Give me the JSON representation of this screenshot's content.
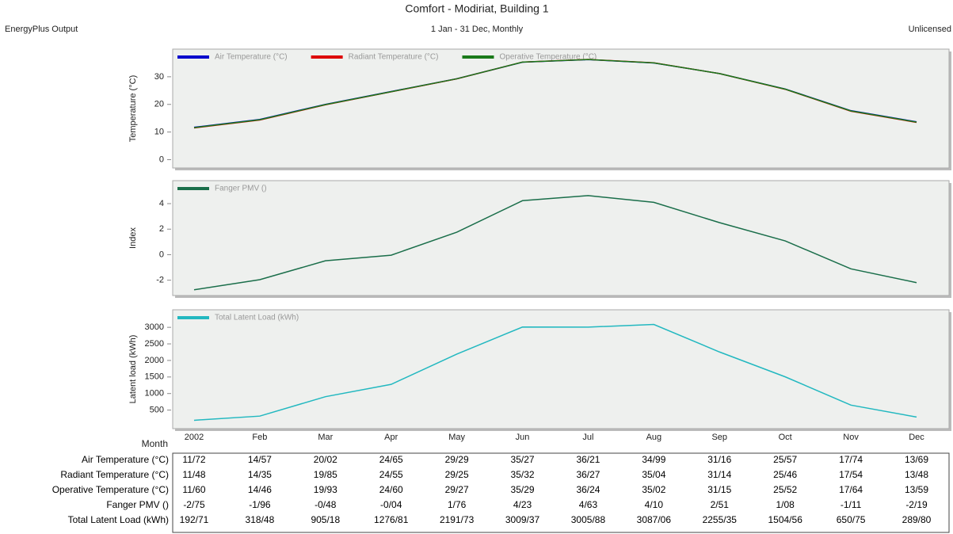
{
  "header": {
    "title": "Comfort - Modiriat, Building 1",
    "subtitle": "1 Jan - 31 Dec, Monthly",
    "left": "EnergyPlus Output",
    "right": "Unlicensed"
  },
  "chart_data": [
    {
      "type": "line",
      "y_label": "Temperature (°C)",
      "ylim": [
        -3,
        40
      ],
      "yticks": [
        0,
        10,
        20,
        30
      ],
      "series": [
        {
          "name": "Air Temperature (°C)",
          "color": "#0000cc",
          "values": [
            11.72,
            14.57,
            20.02,
            24.65,
            29.29,
            35.27,
            36.21,
            34.99,
            31.16,
            25.57,
            17.74,
            13.69
          ]
        },
        {
          "name": "Radiant Temperature (°C)",
          "color": "#dd0000",
          "values": [
            11.48,
            14.35,
            19.85,
            24.55,
            29.25,
            35.32,
            36.27,
            35.04,
            31.14,
            25.46,
            17.54,
            13.48
          ]
        },
        {
          "name": "Operative Temperature (°C)",
          "color": "#1a7a1a",
          "values": [
            11.6,
            14.46,
            19.93,
            24.6,
            29.27,
            35.29,
            36.24,
            35.02,
            31.15,
            25.52,
            17.64,
            13.59
          ]
        }
      ]
    },
    {
      "type": "line",
      "y_label": "Index",
      "ylim": [
        -3.2,
        5.8
      ],
      "yticks": [
        -2,
        0,
        2,
        4
      ],
      "series": [
        {
          "name": "Fanger PMV ()",
          "color": "#1a6e4a",
          "values": [
            -2.75,
            -1.96,
            -0.48,
            -0.04,
            1.76,
            4.23,
            4.63,
            4.1,
            2.51,
            1.08,
            -1.11,
            -2.19
          ]
        }
      ]
    },
    {
      "type": "line",
      "y_label": "Latent load (kWh)",
      "x_label": "Month",
      "ylim": [
        -60,
        3530
      ],
      "yticks": [
        500,
        1000,
        1500,
        2000,
        2500,
        3000
      ],
      "categories": [
        "2002",
        "Feb",
        "Mar",
        "Apr",
        "May",
        "Jun",
        "Jul",
        "Aug",
        "Sep",
        "Oct",
        "Nov",
        "Dec"
      ],
      "series": [
        {
          "name": "Total Latent Load (kWh)",
          "color": "#22b8c0",
          "values": [
            192.71,
            318.48,
            905.18,
            1276.81,
            2191.73,
            3009.37,
            3005.88,
            3087.06,
            2255.35,
            1504.56,
            650.75,
            289.8
          ]
        }
      ]
    }
  ],
  "table": {
    "row_labels": [
      "Air Temperature (°C)",
      "Radiant Temperature (°C)",
      "Operative Temperature (°C)",
      "Fanger PMV ()",
      "Total Latent Load (kWh)"
    ],
    "rows": [
      [
        "11/72",
        "14/57",
        "20/02",
        "24/65",
        "29/29",
        "35/27",
        "36/21",
        "34/99",
        "31/16",
        "25/57",
        "17/74",
        "13/69"
      ],
      [
        "11/48",
        "14/35",
        "19/85",
        "24/55",
        "29/25",
        "35/32",
        "36/27",
        "35/04",
        "31/14",
        "25/46",
        "17/54",
        "13/48"
      ],
      [
        "11/60",
        "14/46",
        "19/93",
        "24/60",
        "29/27",
        "35/29",
        "36/24",
        "35/02",
        "31/15",
        "25/52",
        "17/64",
        "13/59"
      ],
      [
        "-2/75",
        "-1/96",
        "-0/48",
        "-0/04",
        "1/76",
        "4/23",
        "4/63",
        "4/10",
        "2/51",
        "1/08",
        "-1/11",
        "-2/19"
      ],
      [
        "192/71",
        "318/48",
        "905/18",
        "1276/81",
        "2191/73",
        "3009/37",
        "3005/88",
        "3087/06",
        "2255/35",
        "1504/56",
        "650/75",
        "289/80"
      ]
    ]
  }
}
